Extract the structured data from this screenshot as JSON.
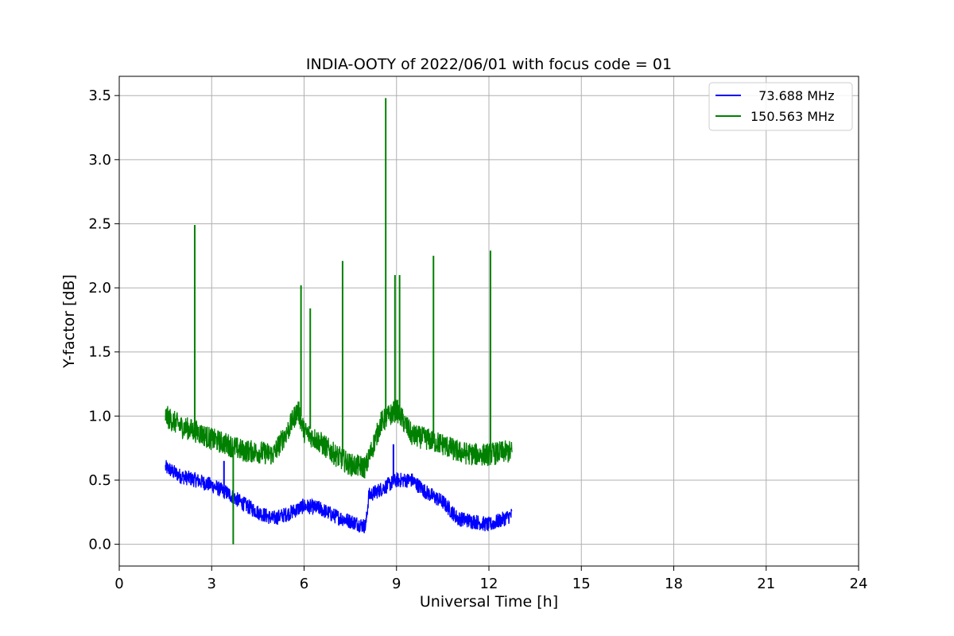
{
  "chart_data": {
    "type": "line",
    "title": "INDIA-OOTY of 2022/06/01 with focus code = 01",
    "xlabel": "Universal Time [h]",
    "ylabel": "Y-factor [dB]",
    "xlim": [
      0,
      24
    ],
    "ylim": [
      -0.17,
      3.65
    ],
    "xticks": [
      0,
      3,
      6,
      9,
      12,
      15,
      18,
      21,
      24
    ],
    "yticks": [
      0.0,
      0.5,
      1.0,
      1.5,
      2.0,
      2.5,
      3.0,
      3.5
    ],
    "xtick_labels": [
      "0",
      "3",
      "6",
      "9",
      "12",
      "15",
      "18",
      "21",
      "24"
    ],
    "ytick_labels": [
      "0.0",
      "0.5",
      "1.0",
      "1.5",
      "2.0",
      "2.5",
      "3.0",
      "3.5"
    ],
    "grid": true,
    "legend": "top-right",
    "series": [
      {
        "name": "  73.688 MHz",
        "color": "#0000ff",
        "x": [
          1.5,
          2.0,
          2.5,
          3.0,
          3.5,
          4.0,
          4.5,
          5.0,
          5.5,
          6.0,
          6.5,
          7.0,
          7.5,
          8.0,
          8.1,
          8.5,
          9.0,
          9.5,
          10.0,
          10.5,
          11.0,
          11.5,
          12.0,
          12.5,
          12.75
        ],
        "y": [
          0.6,
          0.53,
          0.5,
          0.46,
          0.4,
          0.32,
          0.25,
          0.2,
          0.24,
          0.3,
          0.28,
          0.22,
          0.18,
          0.14,
          0.38,
          0.43,
          0.5,
          0.5,
          0.4,
          0.33,
          0.2,
          0.18,
          0.15,
          0.2,
          0.23
        ]
      },
      {
        "name": "150.563 MHz",
        "color": "#008000",
        "x": [
          1.5,
          2.0,
          2.5,
          3.0,
          3.5,
          4.0,
          4.5,
          5.0,
          5.5,
          5.8,
          6.0,
          6.5,
          7.0,
          7.5,
          8.0,
          8.5,
          9.0,
          9.5,
          10.0,
          10.5,
          11.0,
          11.5,
          12.0,
          12.5,
          12.75
        ],
        "y": [
          1.0,
          0.92,
          0.88,
          0.82,
          0.78,
          0.73,
          0.72,
          0.7,
          0.9,
          1.05,
          0.88,
          0.8,
          0.7,
          0.62,
          0.6,
          0.95,
          1.05,
          0.85,
          0.82,
          0.78,
          0.72,
          0.7,
          0.7,
          0.72,
          0.72
        ]
      }
    ],
    "spikes": [
      {
        "series": 1,
        "x": 2.45,
        "base": 0.9,
        "peak": 2.49
      },
      {
        "series": 1,
        "x": 3.7,
        "base": 0.75,
        "peak": 0.0
      },
      {
        "series": 1,
        "x": 5.9,
        "base": 1.0,
        "peak": 2.02
      },
      {
        "series": 1,
        "x": 6.2,
        "base": 0.9,
        "peak": 1.84
      },
      {
        "series": 1,
        "x": 7.25,
        "base": 0.7,
        "peak": 2.21
      },
      {
        "series": 1,
        "x": 8.65,
        "base": 0.95,
        "peak": 3.48
      },
      {
        "series": 1,
        "x": 8.95,
        "base": 1.0,
        "peak": 2.1
      },
      {
        "series": 1,
        "x": 9.1,
        "base": 1.0,
        "peak": 2.1
      },
      {
        "series": 1,
        "x": 10.2,
        "base": 0.8,
        "peak": 2.25
      },
      {
        "series": 1,
        "x": 12.05,
        "base": 0.72,
        "peak": 2.29
      },
      {
        "series": 0,
        "x": 3.4,
        "base": 0.4,
        "peak": 0.65
      },
      {
        "series": 0,
        "x": 8.9,
        "base": 0.5,
        "peak": 0.78
      }
    ]
  }
}
